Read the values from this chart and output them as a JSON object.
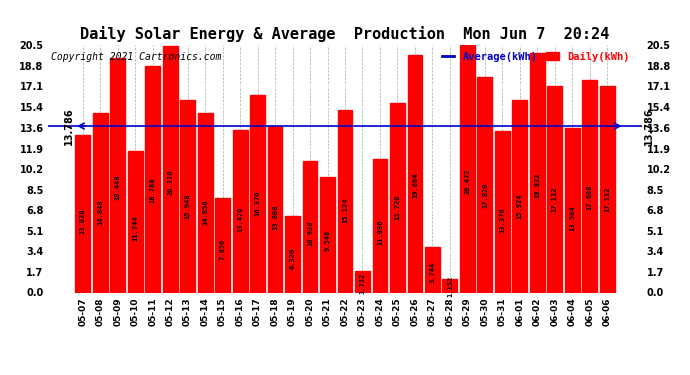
{
  "title": "Daily Solar Energy & Average  Production  Mon Jun 7  20:24",
  "copyright": "Copyright 2021 Cartronics.com",
  "categories": [
    "05-07",
    "05-08",
    "05-09",
    "05-10",
    "05-11",
    "05-12",
    "05-13",
    "05-14",
    "05-15",
    "05-16",
    "05-17",
    "05-18",
    "05-19",
    "05-20",
    "05-21",
    "05-22",
    "05-23",
    "05-24",
    "05-25",
    "05-26",
    "05-27",
    "05-28",
    "05-29",
    "05-30",
    "05-31",
    "06-01",
    "06-02",
    "06-03",
    "06-04",
    "06-05",
    "06-06"
  ],
  "values": [
    13.028,
    14.848,
    19.448,
    11.744,
    18.768,
    20.376,
    15.948,
    14.856,
    7.856,
    13.476,
    16.376,
    13.808,
    6.32,
    10.928,
    9.548,
    15.124,
    1.752,
    11.096,
    15.72,
    19.684,
    3.744,
    1.152,
    20.472,
    17.82,
    13.376,
    15.924,
    19.832,
    17.112,
    13.584,
    17.608,
    17.112
  ],
  "average": 13.786,
  "bar_color": "#ff0000",
  "average_color": "#0000cc",
  "background_color": "#ffffff",
  "grid_color": "#aaaaaa",
  "ylim": [
    0.0,
    20.5
  ],
  "yticks": [
    0.0,
    1.7,
    3.4,
    5.1,
    6.8,
    8.5,
    10.2,
    11.9,
    13.6,
    15.4,
    17.1,
    18.8,
    20.5
  ],
  "avg_label": "13.786",
  "legend_average_label": "Average(kWh)",
  "legend_daily_label": "Daily(kWh)",
  "title_fontsize": 11,
  "copyright_fontsize": 7,
  "tick_fontsize": 7,
  "value_fontsize": 5.0
}
